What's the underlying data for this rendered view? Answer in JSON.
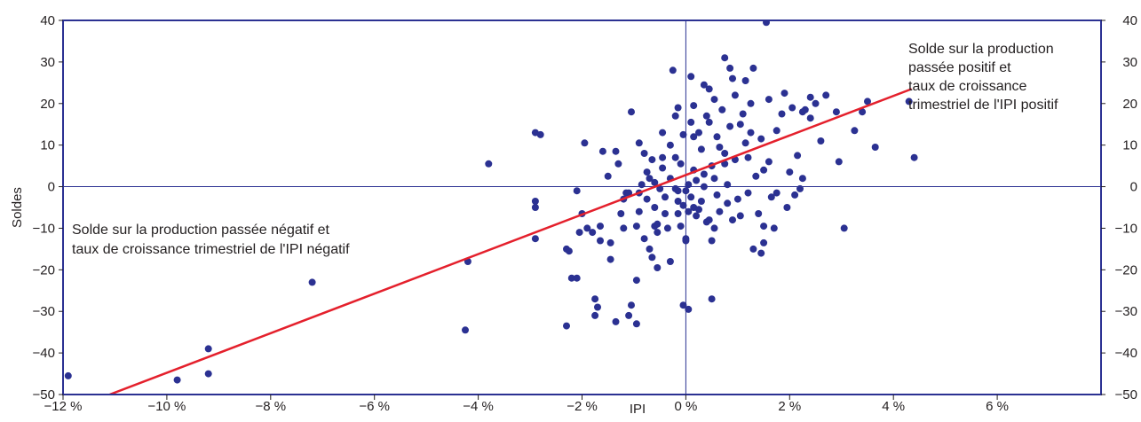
{
  "chart_data": {
    "type": "scatter",
    "title": "",
    "xlabel": "IPI",
    "ylabel": "Soldes",
    "xlim": [
      -0.12,
      0.08
    ],
    "ylim": [
      -50,
      40
    ],
    "x_ticks": [
      -0.12,
      -0.1,
      -0.08,
      -0.06,
      -0.04,
      -0.02,
      0,
      0.02,
      0.04,
      0.06
    ],
    "x_tick_labels": [
      "−12 %",
      "−10 %",
      "−8 %",
      "−6 %",
      "−4 %",
      "−2 %",
      "0 %",
      "2 %",
      "4 %",
      "6 %"
    ],
    "y_ticks": [
      -50,
      -40,
      -30,
      -20,
      -10,
      0,
      10,
      20,
      30,
      40
    ],
    "y_tick_labels": [
      "−50",
      "−40",
      "−30",
      "−20",
      "−10",
      "0",
      "10",
      "20",
      "30",
      "40"
    ],
    "grid": false,
    "reference_lines": {
      "x": 0,
      "y": 0
    },
    "series": [
      {
        "color": "#2b3192",
        "points": [
          [
            -0.119,
            -45.5
          ],
          [
            -0.098,
            -46.5
          ],
          [
            -0.092,
            -39.0
          ],
          [
            -0.092,
            -45.0
          ],
          [
            -0.072,
            -23.0
          ],
          [
            -0.0425,
            -34.5
          ],
          [
            -0.042,
            -18.0
          ],
          [
            -0.038,
            5.5
          ],
          [
            -0.029,
            13.0
          ],
          [
            -0.028,
            12.5
          ],
          [
            -0.029,
            -3.5
          ],
          [
            -0.029,
            -5.0
          ],
          [
            -0.029,
            -12.5
          ],
          [
            -0.023,
            -33.5
          ],
          [
            -0.023,
            -15.0
          ],
          [
            -0.022,
            -22.0
          ],
          [
            -0.0225,
            -15.5
          ],
          [
            -0.021,
            -22.0
          ],
          [
            -0.021,
            -1.0
          ],
          [
            -0.0205,
            -11.0
          ],
          [
            -0.02,
            -6.5
          ],
          [
            -0.0195,
            10.5
          ],
          [
            -0.019,
            -10.0
          ],
          [
            -0.018,
            -11.0
          ],
          [
            -0.0175,
            -27.0
          ],
          [
            -0.0175,
            -31.0
          ],
          [
            -0.017,
            -29.0
          ],
          [
            -0.0165,
            -9.5
          ],
          [
            -0.0165,
            -13.0
          ],
          [
            -0.016,
            8.5
          ],
          [
            -0.015,
            2.5
          ],
          [
            -0.0145,
            -13.5
          ],
          [
            -0.0145,
            -17.5
          ],
          [
            -0.0135,
            -32.5
          ],
          [
            -0.0135,
            8.5
          ],
          [
            -0.013,
            5.5
          ],
          [
            -0.0125,
            -6.5
          ],
          [
            -0.012,
            -3.0
          ],
          [
            -0.012,
            -10.0
          ],
          [
            -0.0115,
            -1.5
          ],
          [
            -0.011,
            -31.0
          ],
          [
            -0.0105,
            -28.5
          ],
          [
            -0.0105,
            18.0
          ],
          [
            -0.0095,
            -22.5
          ],
          [
            -0.0095,
            -33.0
          ],
          [
            -0.0095,
            -9.5
          ],
          [
            -0.009,
            -1.5
          ],
          [
            -0.009,
            -6.0
          ],
          [
            -0.009,
            10.5
          ],
          [
            -0.0085,
            0.5
          ],
          [
            -0.008,
            8.0
          ],
          [
            -0.008,
            -12.5
          ],
          [
            -0.0075,
            3.5
          ],
          [
            -0.0075,
            -3.0
          ],
          [
            -0.007,
            -15.0
          ],
          [
            -0.0065,
            -17.0
          ],
          [
            -0.0065,
            6.5
          ],
          [
            -0.006,
            1.0
          ],
          [
            -0.006,
            -9.5
          ],
          [
            -0.006,
            -5.0
          ],
          [
            -0.0055,
            -19.5
          ],
          [
            -0.0055,
            -9.0
          ],
          [
            -0.0055,
            -11.0
          ],
          [
            -0.005,
            -0.5
          ],
          [
            -0.0045,
            4.5
          ],
          [
            -0.0045,
            13.0
          ],
          [
            -0.0045,
            7.0
          ],
          [
            -0.004,
            -6.5
          ],
          [
            -0.0035,
            -10.0
          ],
          [
            -0.003,
            2.0
          ],
          [
            -0.003,
            10.0
          ],
          [
            -0.003,
            -18.0
          ],
          [
            -0.002,
            17.0
          ],
          [
            -0.002,
            7.0
          ],
          [
            -0.0015,
            -1.0
          ],
          [
            -0.0015,
            -3.5
          ],
          [
            -0.0015,
            -6.5
          ],
          [
            -0.001,
            5.5
          ],
          [
            -0.001,
            -9.5
          ],
          [
            -0.0005,
            -28.5
          ],
          [
            -0.0005,
            -4.5
          ],
          [
            -0.0005,
            12.5
          ],
          [
            0,
            -1.0
          ],
          [
            0,
            -12.5
          ],
          [
            0,
            -13.0
          ],
          [
            0.0005,
            -29.5
          ],
          [
            0.0005,
            0.5
          ],
          [
            0.0005,
            -6.0
          ],
          [
            0.001,
            26.5
          ],
          [
            0.001,
            -2.5
          ],
          [
            0.001,
            15.5
          ],
          [
            0.0015,
            19.5
          ],
          [
            0.0015,
            -5.0
          ],
          [
            0.0015,
            4.0
          ],
          [
            0.002,
            -7.0
          ],
          [
            0.002,
            1.5
          ],
          [
            0.0025,
            13.0
          ],
          [
            0.003,
            9.0
          ],
          [
            0.003,
            -3.5
          ],
          [
            0.0035,
            0.0
          ],
          [
            0.0035,
            3.0
          ],
          [
            0.004,
            -8.5
          ],
          [
            0.004,
            17.0
          ],
          [
            0.0045,
            23.5
          ],
          [
            0.0045,
            -8.0
          ],
          [
            0.005,
            5.0
          ],
          [
            0.005,
            -27.0
          ],
          [
            0.005,
            -13.0
          ],
          [
            0.0055,
            -10.0
          ],
          [
            0.0055,
            2.0
          ],
          [
            0.006,
            12.0
          ],
          [
            0.006,
            -2.0
          ],
          [
            0.0065,
            -6.0
          ],
          [
            0.007,
            18.5
          ],
          [
            0.0075,
            31.0
          ],
          [
            0.0075,
            8.0
          ],
          [
            0.008,
            0.5
          ],
          [
            0.008,
            -4.0
          ],
          [
            0.0085,
            28.5
          ],
          [
            0.0085,
            14.5
          ],
          [
            0.009,
            -8.0
          ],
          [
            0.0095,
            6.5
          ],
          [
            0.0095,
            22.0
          ],
          [
            0.01,
            -3.0
          ],
          [
            0.0105,
            -7.0
          ],
          [
            0.011,
            17.5
          ],
          [
            0.0115,
            10.5
          ],
          [
            0.012,
            -1.5
          ],
          [
            0.0125,
            13.0
          ],
          [
            0.013,
            28.5
          ],
          [
            0.013,
            -15.0
          ],
          [
            0.0135,
            2.5
          ],
          [
            0.014,
            -6.5
          ],
          [
            0.0145,
            -16.0
          ],
          [
            0.015,
            4.0
          ],
          [
            0.015,
            -13.5
          ],
          [
            0.015,
            -9.5
          ],
          [
            0.0155,
            39.5
          ],
          [
            0.016,
            21.0
          ],
          [
            0.016,
            6.0
          ],
          [
            0.0165,
            -2.5
          ],
          [
            0.017,
            -10.0
          ],
          [
            0.0175,
            13.5
          ],
          [
            0.0175,
            -1.5
          ],
          [
            0.0185,
            17.5
          ],
          [
            0.019,
            22.5
          ],
          [
            0.0195,
            -5.0
          ],
          [
            0.02,
            3.5
          ],
          [
            0.0205,
            19.0
          ],
          [
            0.021,
            -2.0
          ],
          [
            0.0215,
            7.5
          ],
          [
            0.022,
            -0.5
          ],
          [
            0.0225,
            2.0
          ],
          [
            0.023,
            18.5
          ],
          [
            0.024,
            21.5
          ],
          [
            0.024,
            16.5
          ],
          [
            0.025,
            20.0
          ],
          [
            0.026,
            11.0
          ],
          [
            0.027,
            22.0
          ],
          [
            0.029,
            18.0
          ],
          [
            0.0295,
            6.0
          ],
          [
            0.0305,
            -10.0
          ],
          [
            0.0325,
            13.5
          ],
          [
            0.034,
            18.0
          ],
          [
            0.035,
            20.5
          ],
          [
            0.0365,
            9.5
          ],
          [
            0.043,
            20.5
          ],
          [
            0.044,
            7.0
          ],
          [
            -0.011,
            -1.5
          ],
          [
            -0.007,
            2.0
          ],
          [
            -0.004,
            -2.5
          ],
          [
            -0.002,
            -0.5
          ],
          [
            0.0025,
            -5.5
          ],
          [
            0.0065,
            9.5
          ],
          [
            0.0105,
            15.0
          ],
          [
            0.0125,
            20.0
          ],
          [
            0.0145,
            11.5
          ],
          [
            0.0225,
            18.0
          ],
          [
            0.0035,
            24.5
          ],
          [
            0.0055,
            21.0
          ],
          [
            0.009,
            26.0
          ],
          [
            0.0115,
            25.5
          ],
          [
            -0.0025,
            28.0
          ],
          [
            0.0015,
            12.0
          ],
          [
            0.0075,
            5.5
          ],
          [
            -0.0015,
            19.0
          ],
          [
            0.0045,
            15.5
          ],
          [
            0.012,
            7.0
          ]
        ]
      }
    ],
    "trendline": {
      "color": "#e4202c",
      "x": [
        -0.111,
        0.0435
      ],
      "y": [
        -50,
        23.5
      ]
    },
    "annotations": [
      {
        "lines": [
          "Solde sur la production",
          "passée positif et",
          "taux de croissance",
          "trimestriel de l'IPI positif"
        ]
      },
      {
        "lines": [
          "Solde sur la production passée négatif et",
          "taux de croissance trimestriel de l'IPI négatif"
        ]
      }
    ],
    "colors": {
      "frame": "#2b3192",
      "axis_lines": "#2b3192",
      "trendline": "#e4202c",
      "points": "#2b3192"
    }
  }
}
